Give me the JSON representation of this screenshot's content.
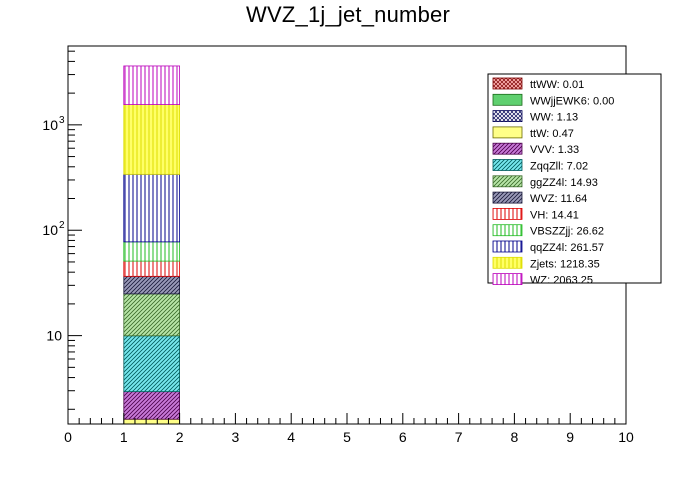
{
  "chart_data": {
    "type": "bar",
    "subtype": "stacked-histogram",
    "title": "WVZ_1j_jet_number",
    "xlabel": "",
    "ylabel": "",
    "yscale": "log",
    "xlim": [
      0,
      10
    ],
    "ylim": [
      1.45,
      5600
    ],
    "grid": false,
    "legend_position": "top-right",
    "x_ticks": [
      "0",
      "1",
      "2",
      "3",
      "4",
      "5",
      "6",
      "7",
      "8",
      "9",
      "10"
    ],
    "y_ticks": [
      {
        "value": 10,
        "label": "10",
        "exp": ""
      },
      {
        "value": 100,
        "label": "10",
        "exp": "2"
      },
      {
        "value": 1000,
        "label": "10",
        "exp": "3"
      }
    ],
    "bin": [
      1,
      2
    ],
    "series": [
      {
        "name": "ttWW",
        "legend": "ttWW: 0.01",
        "value": 0.01,
        "fill": "#ffb3b3",
        "stroke": "#7a0000",
        "pattern": "cross"
      },
      {
        "name": "WWjjEWK6",
        "legend": "WWjjEWK6: 0.00",
        "value": 0.0,
        "fill": "#5fd06f",
        "stroke": "#1a6a1a",
        "pattern": "solid"
      },
      {
        "name": "WW",
        "legend": "WW: 1.13",
        "value": 1.13,
        "fill": "#ffffff",
        "stroke": "#000055",
        "pattern": "cross"
      },
      {
        "name": "ttW",
        "legend": "ttW: 0.47",
        "value": 0.47,
        "fill": "#ffff88",
        "stroke": "#6a6a00",
        "pattern": "solid"
      },
      {
        "name": "VVV",
        "legend": "VVV: 1.33",
        "value": 1.33,
        "fill": "#c87ad8",
        "stroke": "#4a004a",
        "pattern": "diag"
      },
      {
        "name": "ZqqZll",
        "legend": "ZqqZll: 7.02",
        "value": 7.02,
        "fill": "#77e8ee",
        "stroke": "#005a5a",
        "pattern": "diag"
      },
      {
        "name": "ggZZ4l",
        "legend": "ggZZ4l: 14.93",
        "value": 14.93,
        "fill": "#b8e6a8",
        "stroke": "#3a6a2a",
        "pattern": "diag"
      },
      {
        "name": "WVZ",
        "legend": "WVZ: 11.64",
        "value": 11.64,
        "fill": "#9a9ab8",
        "stroke": "#1a1a3a",
        "pattern": "diag"
      },
      {
        "name": "VH",
        "legend": "VH: 14.41",
        "value": 14.41,
        "fill": "#ffffff",
        "stroke": "#dd0000",
        "pattern": "vert"
      },
      {
        "name": "VBSZZjj",
        "legend": "VBSZZjj: 26.62",
        "value": 26.62,
        "fill": "#ffffff",
        "stroke": "#22bb22",
        "pattern": "vert"
      },
      {
        "name": "qqZZ4l",
        "legend": "qqZZ4l: 261.57",
        "value": 261.57,
        "fill": "#ffffff",
        "stroke": "#00008b",
        "pattern": "vert"
      },
      {
        "name": "Zjets",
        "legend": "Zjets: 1218.35",
        "value": 1218.35,
        "fill": "#ffff66",
        "stroke": "#dddd00",
        "pattern": "vert"
      },
      {
        "name": "WZ",
        "legend": "WZ: 2063.25",
        "value": 2063.25,
        "fill": "#ffffff",
        "stroke": "#bb00bb",
        "pattern": "vert"
      }
    ]
  }
}
